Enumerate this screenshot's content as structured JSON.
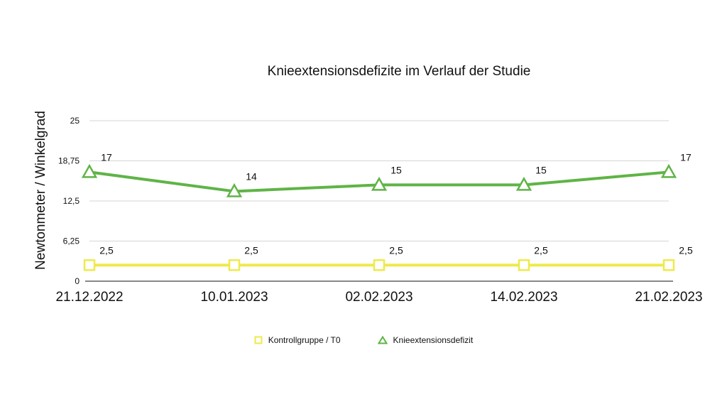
{
  "chart_data": {
    "type": "line",
    "title": "Knieextensionsdefizite im Verlauf der Studie",
    "xlabel": "",
    "ylabel": "Newtonmeter / Winkelgrad",
    "categories": [
      "21.12.2022",
      "10.01.2023",
      "02.02.2023",
      "14.02.2023",
      "21.02.2023"
    ],
    "ylim": [
      0,
      25
    ],
    "yticks": [
      "0",
      "6,25",
      "12,5",
      "18,75",
      "25"
    ],
    "grid": true,
    "legend_position": "bottom",
    "series": [
      {
        "name": "Kontrollgruppe / T0",
        "values": [
          2.5,
          2.5,
          2.5,
          2.5,
          2.5
        ],
        "labels": [
          "2,5",
          "2,5",
          "2,5",
          "2,5",
          "2,5"
        ],
        "marker": "square",
        "color": "#eeea4a"
      },
      {
        "name": "Knieextensionsdefizit",
        "values": [
          17,
          14,
          15,
          15,
          17
        ],
        "labels": [
          "17",
          "14",
          "15",
          "15",
          "17"
        ],
        "marker": "triangle",
        "color": "#5fb446"
      }
    ]
  }
}
